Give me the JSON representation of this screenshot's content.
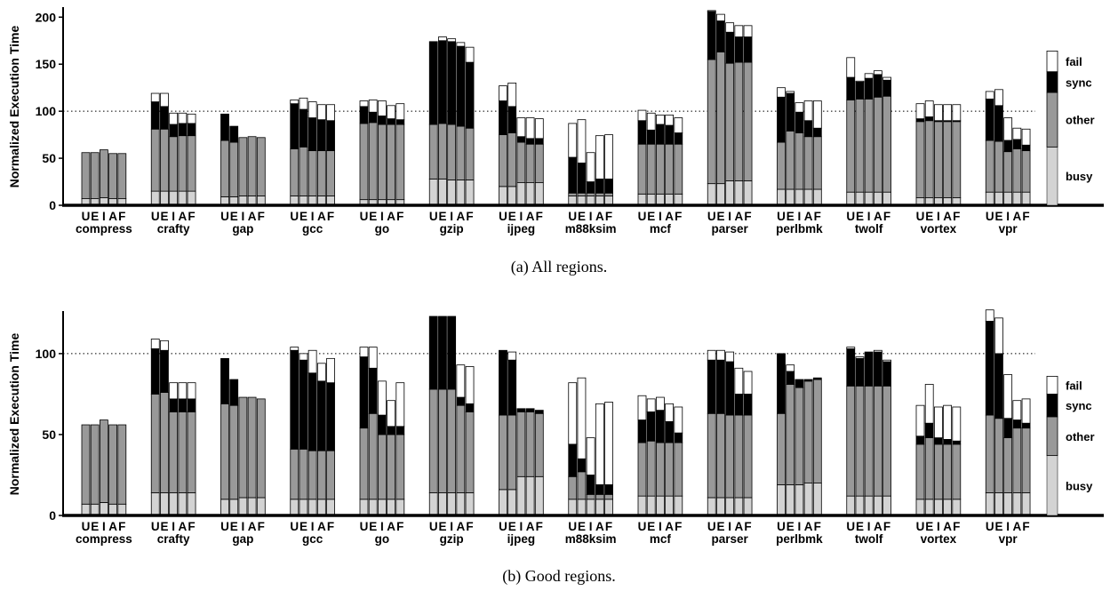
{
  "colors": {
    "busy": "#d3d3d3",
    "other": "#999999",
    "sync": "#000000",
    "fail": "#ffffff",
    "outline": "#000000"
  },
  "chart_data": [
    {
      "type": "bar",
      "stacked": true,
      "caption": "(a) All regions.",
      "ylabel": "Normalized Execution Time",
      "ylim": [
        0,
        205
      ],
      "yticks": [
        0,
        50,
        100,
        150,
        200
      ],
      "reference_line": 100,
      "benchmarks": [
        "compress",
        "crafty",
        "gap",
        "gcc",
        "go",
        "gzip",
        "ijpeg",
        "m88ksim",
        "mcf",
        "parser",
        "perlbmk",
        "twolf",
        "vortex",
        "vpr"
      ],
      "bar_labels": [
        "U",
        "E",
        "I",
        "A",
        "F"
      ],
      "legend": [
        "fail",
        "sync",
        "other",
        "busy"
      ],
      "series": [
        {
          "name": "busy",
          "values": [
            [
              7,
              7,
              8,
              7,
              7
            ],
            [
              15,
              15,
              15,
              15,
              15
            ],
            [
              9,
              9,
              10,
              10,
              10
            ],
            [
              10,
              10,
              10,
              10,
              10
            ],
            [
              6,
              6,
              6,
              6,
              6
            ],
            [
              28,
              28,
              27,
              27,
              27
            ],
            [
              20,
              20,
              24,
              24,
              24
            ],
            [
              10,
              10,
              10,
              10,
              10
            ],
            [
              12,
              12,
              12,
              12,
              12
            ],
            [
              23,
              23,
              26,
              26,
              26
            ],
            [
              17,
              17,
              17,
              17,
              17
            ],
            [
              14,
              14,
              14,
              14,
              14
            ],
            [
              8,
              8,
              8,
              8,
              8
            ],
            [
              14,
              14,
              14,
              14,
              14
            ]
          ]
        },
        {
          "name": "other",
          "values": [
            [
              49,
              49,
              51,
              48,
              48
            ],
            [
              66,
              66,
              58,
              59,
              59
            ],
            [
              60,
              58,
              62,
              63,
              62
            ],
            [
              50,
              52,
              48,
              48,
              48
            ],
            [
              81,
              82,
              80,
              80,
              80
            ],
            [
              58,
              59,
              59,
              57,
              55
            ],
            [
              55,
              57,
              43,
              41,
              41
            ],
            [
              3,
              3,
              3,
              3,
              3
            ],
            [
              53,
              53,
              53,
              53,
              53
            ],
            [
              132,
              140,
              125,
              126,
              126
            ],
            [
              50,
              62,
              60,
              56,
              56
            ],
            [
              98,
              99,
              99,
              101,
              102
            ],
            [
              81,
              82,
              81,
              81,
              81
            ],
            [
              55,
              54,
              43,
              46,
              44
            ]
          ]
        },
        {
          "name": "sync",
          "values": [
            [
              0,
              0,
              0,
              0,
              0
            ],
            [
              29,
              24,
              13,
              13,
              13
            ],
            [
              28,
              17,
              0,
              0,
              0
            ],
            [
              48,
              40,
              35,
              33,
              32
            ],
            [
              18,
              11,
              9,
              6,
              5
            ],
            [
              88,
              88,
              88,
              85,
              70
            ],
            [
              36,
              28,
              6,
              6,
              6
            ],
            [
              38,
              32,
              12,
              15,
              15
            ],
            [
              25,
              15,
              21,
              20,
              12
            ],
            [
              51,
              33,
              33,
              27,
              27
            ],
            [
              48,
              40,
              22,
              17,
              9
            ],
            [
              24,
              18,
              22,
              24,
              17
            ],
            [
              3,
              4,
              1,
              1,
              1
            ],
            [
              44,
              38,
              12,
              10,
              6
            ]
          ]
        },
        {
          "name": "fail",
          "values": [
            [
              0,
              0,
              0,
              0,
              0
            ],
            [
              9,
              14,
              12,
              11,
              10
            ],
            [
              0,
              0,
              0,
              0,
              0
            ],
            [
              4,
              12,
              17,
              16,
              17
            ],
            [
              6,
              13,
              16,
              14,
              17
            ],
            [
              0,
              4,
              3,
              4,
              16
            ],
            [
              16,
              25,
              20,
              22,
              21
            ],
            [
              36,
              46,
              31,
              46,
              47
            ],
            [
              11,
              18,
              10,
              11,
              16
            ],
            [
              1,
              7,
              10,
              12,
              12
            ],
            [
              10,
              2,
              10,
              21,
              29
            ],
            [
              21,
              1,
              5,
              4,
              3
            ],
            [
              16,
              17,
              17,
              17,
              17
            ],
            [
              8,
              17,
              24,
              12,
              17
            ]
          ]
        }
      ],
      "legend_bar": {
        "busy": 62,
        "other": 58,
        "sync": 22,
        "fail": 22
      }
    },
    {
      "type": "bar",
      "stacked": true,
      "caption": "(b) Good regions.",
      "ylabel": "Normalized Execution Time",
      "ylim": [
        0,
        123
      ],
      "yticks": [
        0,
        50,
        100
      ],
      "reference_line": 100,
      "benchmarks": [
        "compress",
        "crafty",
        "gap",
        "gcc",
        "go",
        "gzip",
        "ijpeg",
        "m88ksim",
        "mcf",
        "parser",
        "perlbmk",
        "twolf",
        "vortex",
        "vpr"
      ],
      "bar_labels": [
        "U",
        "E",
        "I",
        "A",
        "F"
      ],
      "legend": [
        "fail",
        "sync",
        "other",
        "busy"
      ],
      "series": [
        {
          "name": "busy",
          "values": [
            [
              7,
              7,
              8,
              7,
              7
            ],
            [
              14,
              14,
              14,
              14,
              14
            ],
            [
              10,
              10,
              11,
              11,
              11
            ],
            [
              10,
              10,
              10,
              10,
              10
            ],
            [
              10,
              10,
              10,
              10,
              10
            ],
            [
              14,
              14,
              14,
              14,
              14
            ],
            [
              16,
              16,
              24,
              24,
              24
            ],
            [
              10,
              10,
              10,
              10,
              10
            ],
            [
              12,
              12,
              12,
              12,
              12
            ],
            [
              11,
              11,
              11,
              11,
              11
            ],
            [
              19,
              19,
              19,
              20,
              20
            ],
            [
              12,
              12,
              12,
              12,
              12
            ],
            [
              10,
              10,
              10,
              10,
              10
            ],
            [
              14,
              14,
              14,
              14,
              14
            ]
          ]
        },
        {
          "name": "other",
          "values": [
            [
              49,
              49,
              51,
              49,
              49
            ],
            [
              61,
              62,
              50,
              50,
              50
            ],
            [
              59,
              58,
              62,
              62,
              61
            ],
            [
              31,
              31,
              30,
              30,
              30
            ],
            [
              44,
              53,
              40,
              40,
              40
            ],
            [
              64,
              64,
              64,
              54,
              50
            ],
            [
              46,
              46,
              40,
              40,
              39
            ],
            [
              14,
              17,
              3,
              3,
              3
            ],
            [
              33,
              34,
              33,
              33,
              33
            ],
            [
              52,
              52,
              51,
              51,
              51
            ],
            [
              44,
              62,
              60,
              63,
              64
            ],
            [
              68,
              68,
              68,
              68,
              68
            ],
            [
              34,
              38,
              34,
              34,
              34
            ],
            [
              48,
              46,
              34,
              40,
              40
            ]
          ]
        },
        {
          "name": "sync",
          "values": [
            [
              0,
              0,
              0,
              0,
              0
            ],
            [
              28,
              26,
              8,
              8,
              8
            ],
            [
              28,
              16,
              0,
              0,
              0
            ],
            [
              61,
              55,
              48,
              43,
              42
            ],
            [
              44,
              28,
              12,
              5,
              5
            ],
            [
              45,
              45,
              45,
              5,
              5
            ],
            [
              40,
              34,
              2,
              2,
              2
            ],
            [
              20,
              8,
              12,
              6,
              6
            ],
            [
              14,
              18,
              20,
              13,
              6
            ],
            [
              33,
              33,
              33,
              13,
              13
            ],
            [
              37,
              8,
              5,
              1,
              1
            ],
            [
              23,
              17,
              21,
              21,
              15
            ],
            [
              5,
              9,
              4,
              3,
              2
            ],
            [
              58,
              40,
              12,
              5,
              3
            ]
          ]
        },
        {
          "name": "fail",
          "values": [
            [
              0,
              0,
              0,
              0,
              0
            ],
            [
              6,
              6,
              10,
              10,
              10
            ],
            [
              0,
              0,
              0,
              0,
              0
            ],
            [
              2,
              4,
              14,
              11,
              15
            ],
            [
              6,
              13,
              21,
              16,
              27
            ],
            [
              0,
              0,
              0,
              20,
              23
            ],
            [
              0,
              5,
              0,
              0,
              0
            ],
            [
              38,
              50,
              23,
              50,
              51
            ],
            [
              15,
              8,
              8,
              11,
              16
            ],
            [
              6,
              6,
              6,
              16,
              14
            ],
            [
              0,
              4,
              0,
              0,
              0
            ],
            [
              1,
              1,
              0,
              1,
              1
            ],
            [
              19,
              24,
              19,
              21,
              21
            ],
            [
              7,
              22,
              27,
              12,
              15
            ]
          ]
        }
      ],
      "legend_bar": {
        "busy": 37,
        "other": 24,
        "sync": 14,
        "fail": 11
      }
    }
  ]
}
